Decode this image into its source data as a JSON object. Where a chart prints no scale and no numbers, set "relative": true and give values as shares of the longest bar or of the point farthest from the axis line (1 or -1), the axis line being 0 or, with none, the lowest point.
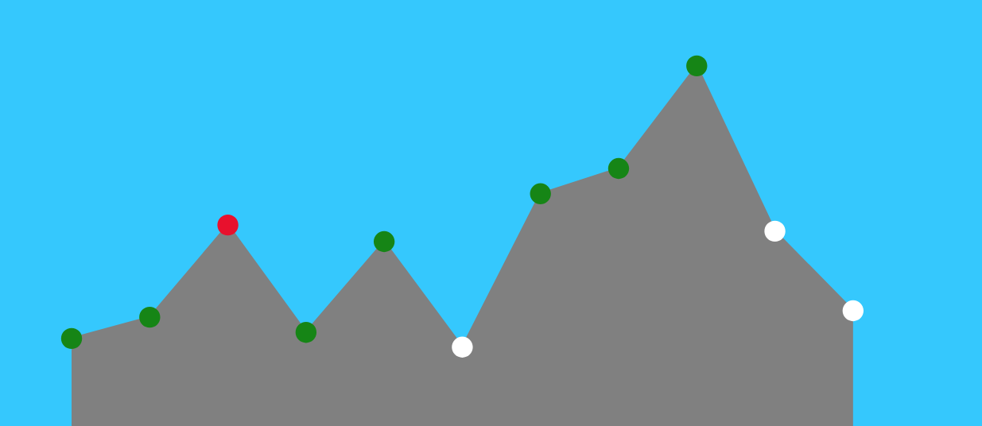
{
  "chart_data": {
    "type": "area",
    "relative": true,
    "categories": [
      null,
      null,
      null,
      null,
      null,
      null,
      null,
      null,
      null,
      null,
      null
    ],
    "series": [
      {
        "color": "#808080",
        "marker": "circle",
        "colors": [
          "#168516",
          "#168516",
          "#e8112d",
          "#168516",
          "#168516",
          "#ffffff",
          "#168516",
          "#168516",
          "#168516",
          "#ffffff",
          "#ffffff"
        ],
        "values": [
          0.243,
          0.302,
          0.558,
          0.26,
          0.512,
          0.219,
          0.645,
          0.715,
          1,
          0.541,
          0.32
        ]
      }
    ]
  }
}
